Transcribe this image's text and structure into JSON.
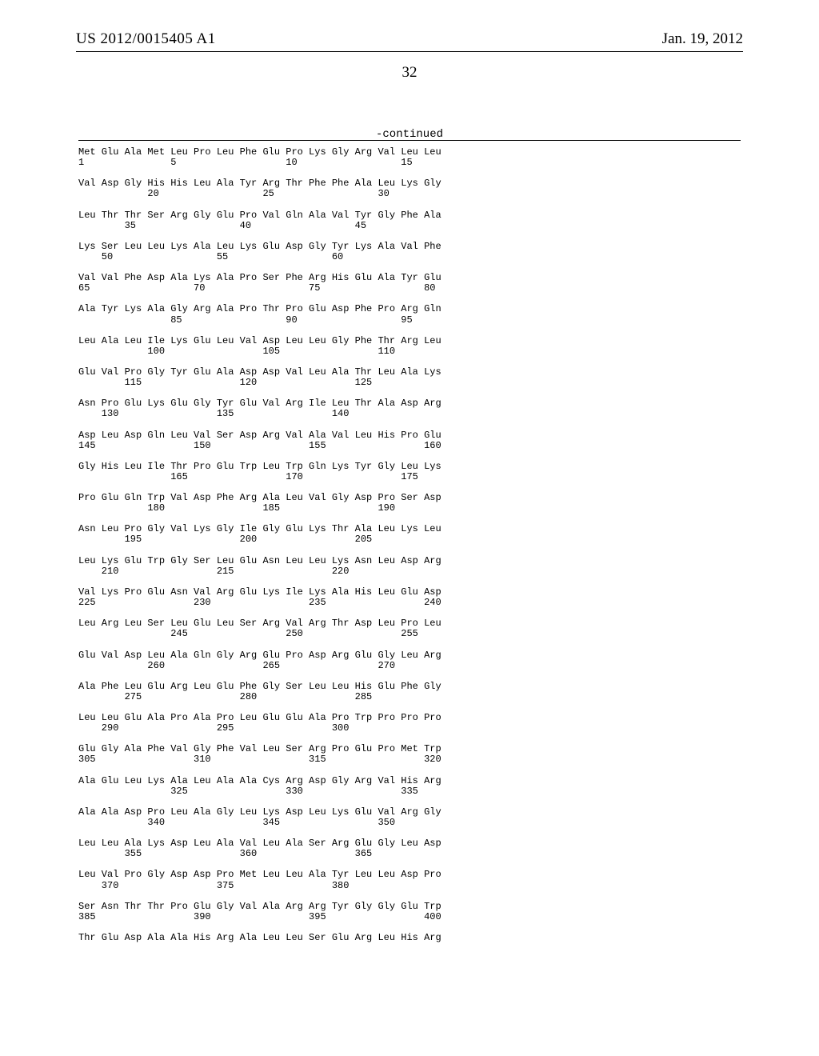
{
  "header": {
    "pub_number": "US 2012/0015405 A1",
    "pub_date": "Jan. 19, 2012"
  },
  "page_number": "32",
  "continued_label": "-continued",
  "sequence_text": "Met Glu Ala Met Leu Pro Leu Phe Glu Pro Lys Gly Arg Val Leu Leu\n1               5                   10                  15\n\nVal Asp Gly His His Leu Ala Tyr Arg Thr Phe Phe Ala Leu Lys Gly\n            20                  25                  30\n\nLeu Thr Thr Ser Arg Gly Glu Pro Val Gln Ala Val Tyr Gly Phe Ala\n        35                  40                  45\n\nLys Ser Leu Leu Lys Ala Leu Lys Glu Asp Gly Tyr Lys Ala Val Phe\n    50                  55                  60\n\nVal Val Phe Asp Ala Lys Ala Pro Ser Phe Arg His Glu Ala Tyr Glu\n65                  70                  75                  80\n\nAla Tyr Lys Ala Gly Arg Ala Pro Thr Pro Glu Asp Phe Pro Arg Gln\n                85                  90                  95\n\nLeu Ala Leu Ile Lys Glu Leu Val Asp Leu Leu Gly Phe Thr Arg Leu\n            100                 105                 110\n\nGlu Val Pro Gly Tyr Glu Ala Asp Asp Val Leu Ala Thr Leu Ala Lys\n        115                 120                 125\n\nAsn Pro Glu Lys Glu Gly Tyr Glu Val Arg Ile Leu Thr Ala Asp Arg\n    130                 135                 140\n\nAsp Leu Asp Gln Leu Val Ser Asp Arg Val Ala Val Leu His Pro Glu\n145                 150                 155                 160\n\nGly His Leu Ile Thr Pro Glu Trp Leu Trp Gln Lys Tyr Gly Leu Lys\n                165                 170                 175\n\nPro Glu Gln Trp Val Asp Phe Arg Ala Leu Val Gly Asp Pro Ser Asp\n            180                 185                 190\n\nAsn Leu Pro Gly Val Lys Gly Ile Gly Glu Lys Thr Ala Leu Lys Leu\n        195                 200                 205\n\nLeu Lys Glu Trp Gly Ser Leu Glu Asn Leu Leu Lys Asn Leu Asp Arg\n    210                 215                 220\n\nVal Lys Pro Glu Asn Val Arg Glu Lys Ile Lys Ala His Leu Glu Asp\n225                 230                 235                 240\n\nLeu Arg Leu Ser Leu Glu Leu Ser Arg Val Arg Thr Asp Leu Pro Leu\n                245                 250                 255\n\nGlu Val Asp Leu Ala Gln Gly Arg Glu Pro Asp Arg Glu Gly Leu Arg\n            260                 265                 270\n\nAla Phe Leu Glu Arg Leu Glu Phe Gly Ser Leu Leu His Glu Phe Gly\n        275                 280                 285\n\nLeu Leu Glu Ala Pro Ala Pro Leu Glu Glu Ala Pro Trp Pro Pro Pro\n    290                 295                 300\n\nGlu Gly Ala Phe Val Gly Phe Val Leu Ser Arg Pro Glu Pro Met Trp\n305                 310                 315                 320\n\nAla Glu Leu Lys Ala Leu Ala Ala Cys Arg Asp Gly Arg Val His Arg\n                325                 330                 335\n\nAla Ala Asp Pro Leu Ala Gly Leu Lys Asp Leu Lys Glu Val Arg Gly\n            340                 345                 350\n\nLeu Leu Ala Lys Asp Leu Ala Val Leu Ala Ser Arg Glu Gly Leu Asp\n        355                 360                 365\n\nLeu Val Pro Gly Asp Asp Pro Met Leu Leu Ala Tyr Leu Leu Asp Pro\n    370                 375                 380\n\nSer Asn Thr Thr Pro Glu Gly Val Ala Arg Arg Tyr Gly Gly Glu Trp\n385                 390                 395                 400\n\nThr Glu Asp Ala Ala His Arg Ala Leu Leu Ser Glu Arg Leu His Arg"
}
